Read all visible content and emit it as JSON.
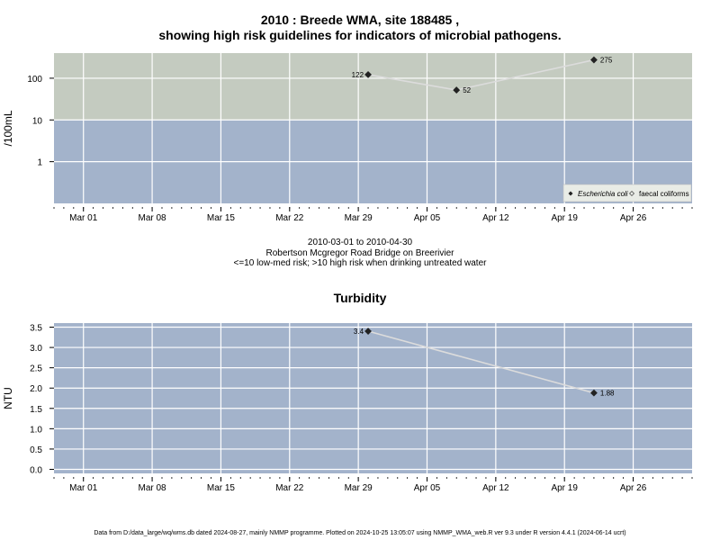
{
  "title_line1": "2010 : Breede WMA, site 188485 ,",
  "title_line2": "showing high risk guidelines for indicators of microbial pathogens.",
  "notes": {
    "date_range": "2010-03-01 to 2010-04-30",
    "site_name": "Robertson Mcgregor Road Bridge on Breerivier",
    "risk_note": "<=10 low-med risk; >10 high risk when drinking untreated water"
  },
  "turbidity_title": "Turbidity",
  "footer": "Data from D:/data_large/wq/wms.db dated 2024-08-27, mainly NMMP programme. Plotted on 2024-10-25 13:05:07 using NMMP_WMA_web.R ver 9.3 under R version 4.4.1 (2024-06-14 ucrt)",
  "colors": {
    "high_risk_band": "#c4cbc0",
    "low_risk_band": "#a3b3cb",
    "grid": "#ffffff",
    "line": "#dcdcdc",
    "point": "#222222"
  },
  "chart_data": [
    {
      "type": "line",
      "y_scale": "log",
      "ylabel": "/100mL",
      "x_tick_labels": [
        "Mar 01",
        "Mar 08",
        "Mar 15",
        "Mar 22",
        "Mar 29",
        "Apr 05",
        "Apr 12",
        "Apr 19",
        "Apr 26"
      ],
      "x_ticks": [
        "2010-03-01",
        "2010-03-08",
        "2010-03-15",
        "2010-03-22",
        "2010-03-29",
        "2010-04-05",
        "2010-04-12",
        "2010-04-19",
        "2010-04-26"
      ],
      "xlim": [
        "2010-02-26",
        "2010-05-02"
      ],
      "y_tick_labels": [
        "1",
        "10",
        "100"
      ],
      "y_ticks": [
        1,
        10,
        100
      ],
      "ylim": [
        0.1,
        400
      ],
      "bands": [
        {
          "from": 0.1,
          "to": 10,
          "color": "#a3b3cb"
        },
        {
          "from": 10,
          "to": 400,
          "color": "#c4cbc0"
        }
      ],
      "series": [
        {
          "name": "Escherichia coli",
          "marker": "filled-diamond",
          "x": [
            "2010-03-30",
            "2010-04-08",
            "2010-04-22"
          ],
          "y": [
            122,
            52,
            275
          ],
          "labels": [
            "122",
            "52",
            "275"
          ]
        },
        {
          "name": "faecal coliforms",
          "marker": "open-diamond",
          "x": [],
          "y": []
        }
      ],
      "legend": "bottom-right",
      "grid": true
    },
    {
      "type": "line",
      "title": "Turbidity",
      "ylabel": "NTU",
      "x_tick_labels": [
        "Mar 01",
        "Mar 08",
        "Mar 15",
        "Mar 22",
        "Mar 29",
        "Apr 05",
        "Apr 12",
        "Apr 19",
        "Apr 26"
      ],
      "x_ticks": [
        "2010-03-01",
        "2010-03-08",
        "2010-03-15",
        "2010-03-22",
        "2010-03-29",
        "2010-04-05",
        "2010-04-12",
        "2010-04-19",
        "2010-04-26"
      ],
      "xlim": [
        "2010-02-26",
        "2010-05-02"
      ],
      "y_tick_labels": [
        "0.0",
        "0.5",
        "1.0",
        "1.5",
        "2.0",
        "2.5",
        "3.0",
        "3.5"
      ],
      "y_ticks": [
        0,
        0.5,
        1,
        1.5,
        2,
        2.5,
        3,
        3.5
      ],
      "ylim": [
        -0.1,
        3.6
      ],
      "series": [
        {
          "name": "Turbidity",
          "marker": "filled-diamond",
          "x": [
            "2010-03-30",
            "2010-04-22"
          ],
          "y": [
            3.4,
            1.88
          ],
          "labels": [
            "3.4",
            "1.88"
          ]
        }
      ],
      "grid": true
    }
  ]
}
